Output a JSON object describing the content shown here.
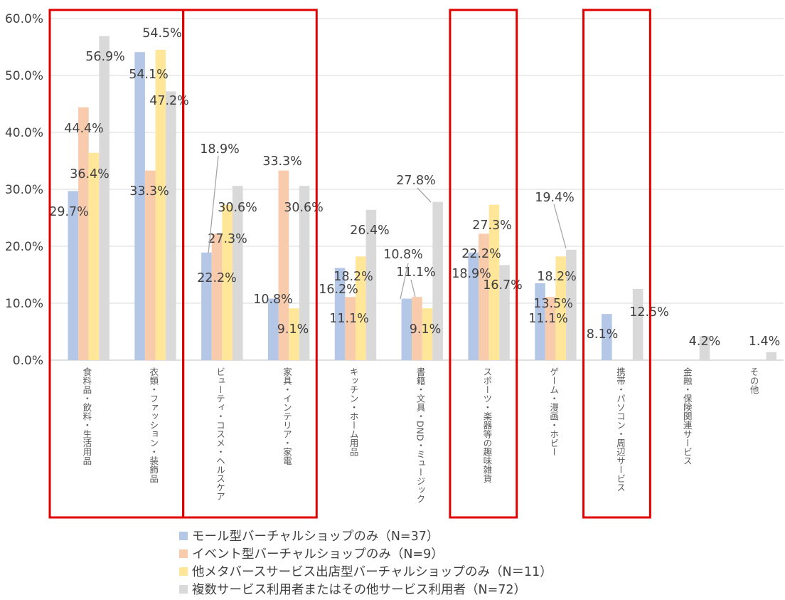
{
  "chart_data": {
    "type": "bar",
    "categories": [
      "食料品・飲料・生活用品",
      "衣類・ファッション・装飾品",
      "ビューティ・コスメ・ヘルスケア",
      "家具・インテリア・家電",
      "キッチン・ホーム用品",
      "書籍・文具・DND・ミュージック",
      "スポーツ・楽器等の趣味雑貨",
      "ゲーム・漫画・ホビー",
      "携帯・パソコン・周辺サービス",
      "金融・保険関連サービス",
      "その他"
    ],
    "series": [
      {
        "name": "モール型バーチャルショップのみ（N=37）",
        "color": "#b4c7e7",
        "values": [
          29.7,
          54.1,
          18.9,
          10.8,
          16.2,
          10.8,
          18.9,
          13.5,
          8.1,
          0,
          0
        ],
        "labels": [
          "29.7%",
          "54.1%",
          "18.9%",
          "10.8%",
          "16.2%",
          "10.8%",
          "18.9%",
          "13.5%",
          "8.1%",
          "",
          ""
        ]
      },
      {
        "name": "イベント型バーチャルショップのみ（N=9）",
        "color": "#f8cbad",
        "values": [
          44.4,
          33.3,
          22.2,
          33.3,
          11.1,
          11.1,
          22.2,
          11.1,
          0,
          0,
          0
        ],
        "labels": [
          "44.4%",
          "33.3%",
          "22.2%",
          "33.3%",
          "11.1%",
          "11.1%",
          "22.2%",
          "11.1%",
          "",
          "",
          ""
        ]
      },
      {
        "name": "他メタバースサービス出店型バーチャルショップのみ（N＝11）",
        "color": "#ffe699",
        "values": [
          36.4,
          54.5,
          27.3,
          9.1,
          18.2,
          9.1,
          27.3,
          18.2,
          0,
          0,
          0
        ],
        "labels": [
          "36.4%",
          "54.5%",
          "27.3%",
          "9.1%",
          "18.2%",
          "9.1%",
          "27.3%",
          "18.2%",
          "",
          "",
          ""
        ]
      },
      {
        "name": "複数サービス利用者またはその他サービス利用者（N=72）",
        "color": "#d9d9d9",
        "values": [
          56.9,
          47.2,
          30.6,
          30.6,
          26.4,
          27.8,
          16.7,
          19.4,
          12.5,
          4.2,
          1.4
        ],
        "labels": [
          "56.9%",
          "47.2%",
          "30.6%",
          "30.6%",
          "26.4%",
          "27.8%",
          "16.7%",
          "19.4%",
          "12.5%",
          "4.2%",
          "1.4%"
        ]
      }
    ],
    "y_ticks": [
      "0.0%",
      "10.0%",
      "20.0%",
      "30.0%",
      "40.0%",
      "50.0%",
      "60.0%"
    ],
    "ylim": [
      0,
      60
    ],
    "grid": true,
    "legend": "bottom",
    "highlighted_categories": [
      [
        0,
        1
      ],
      [
        2,
        3
      ],
      [
        6,
        6
      ],
      [
        8,
        8
      ]
    ],
    "highlight_color": "#e00000"
  }
}
